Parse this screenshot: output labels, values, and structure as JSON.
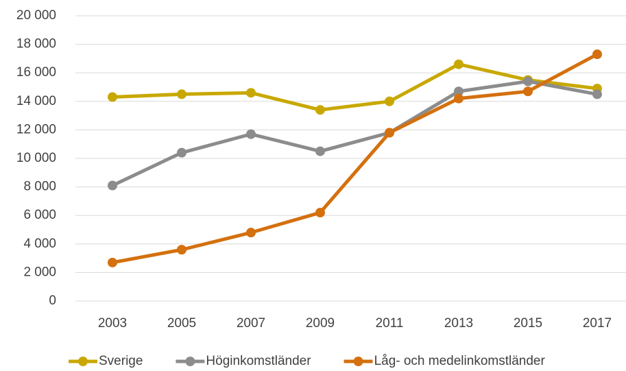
{
  "chart_data": {
    "type": "line",
    "categories": [
      "2003",
      "2005",
      "2007",
      "2009",
      "2011",
      "2013",
      "2015",
      "2017"
    ],
    "series": [
      {
        "name": "Sverige",
        "color": "#c8a800",
        "values": [
          14300,
          14500,
          14600,
          13400,
          14000,
          16600,
          15500,
          14900
        ]
      },
      {
        "name": "Höginkomstländer",
        "color": "#8c8c8c",
        "values": [
          8100,
          10400,
          11700,
          10500,
          11800,
          14700,
          15400,
          14500
        ]
      },
      {
        "name": "Låg- och medelinkomstländer",
        "color": "#d4700e",
        "values": [
          2700,
          3600,
          4800,
          6200,
          11800,
          14200,
          14700,
          17300
        ]
      }
    ],
    "ylim": [
      0,
      20000
    ],
    "yticks": [
      0,
      {
        "value": 2000,
        "label": "2 000"
      },
      {
        "value": 4000,
        "label": "4 000"
      },
      {
        "value": 6000,
        "label": "6 000"
      },
      {
        "value": 8000,
        "label": "8 000"
      },
      {
        "value": 10000,
        "label": "10 000"
      },
      {
        "value": 12000,
        "label": "12 000"
      },
      {
        "value": 14000,
        "label": "14 000"
      },
      {
        "value": 16000,
        "label": "16 000"
      },
      {
        "value": 18000,
        "label": "18 000"
      },
      {
        "value": 20000,
        "label": "20 000"
      }
    ],
    "grid": true,
    "legend": "bottom"
  }
}
